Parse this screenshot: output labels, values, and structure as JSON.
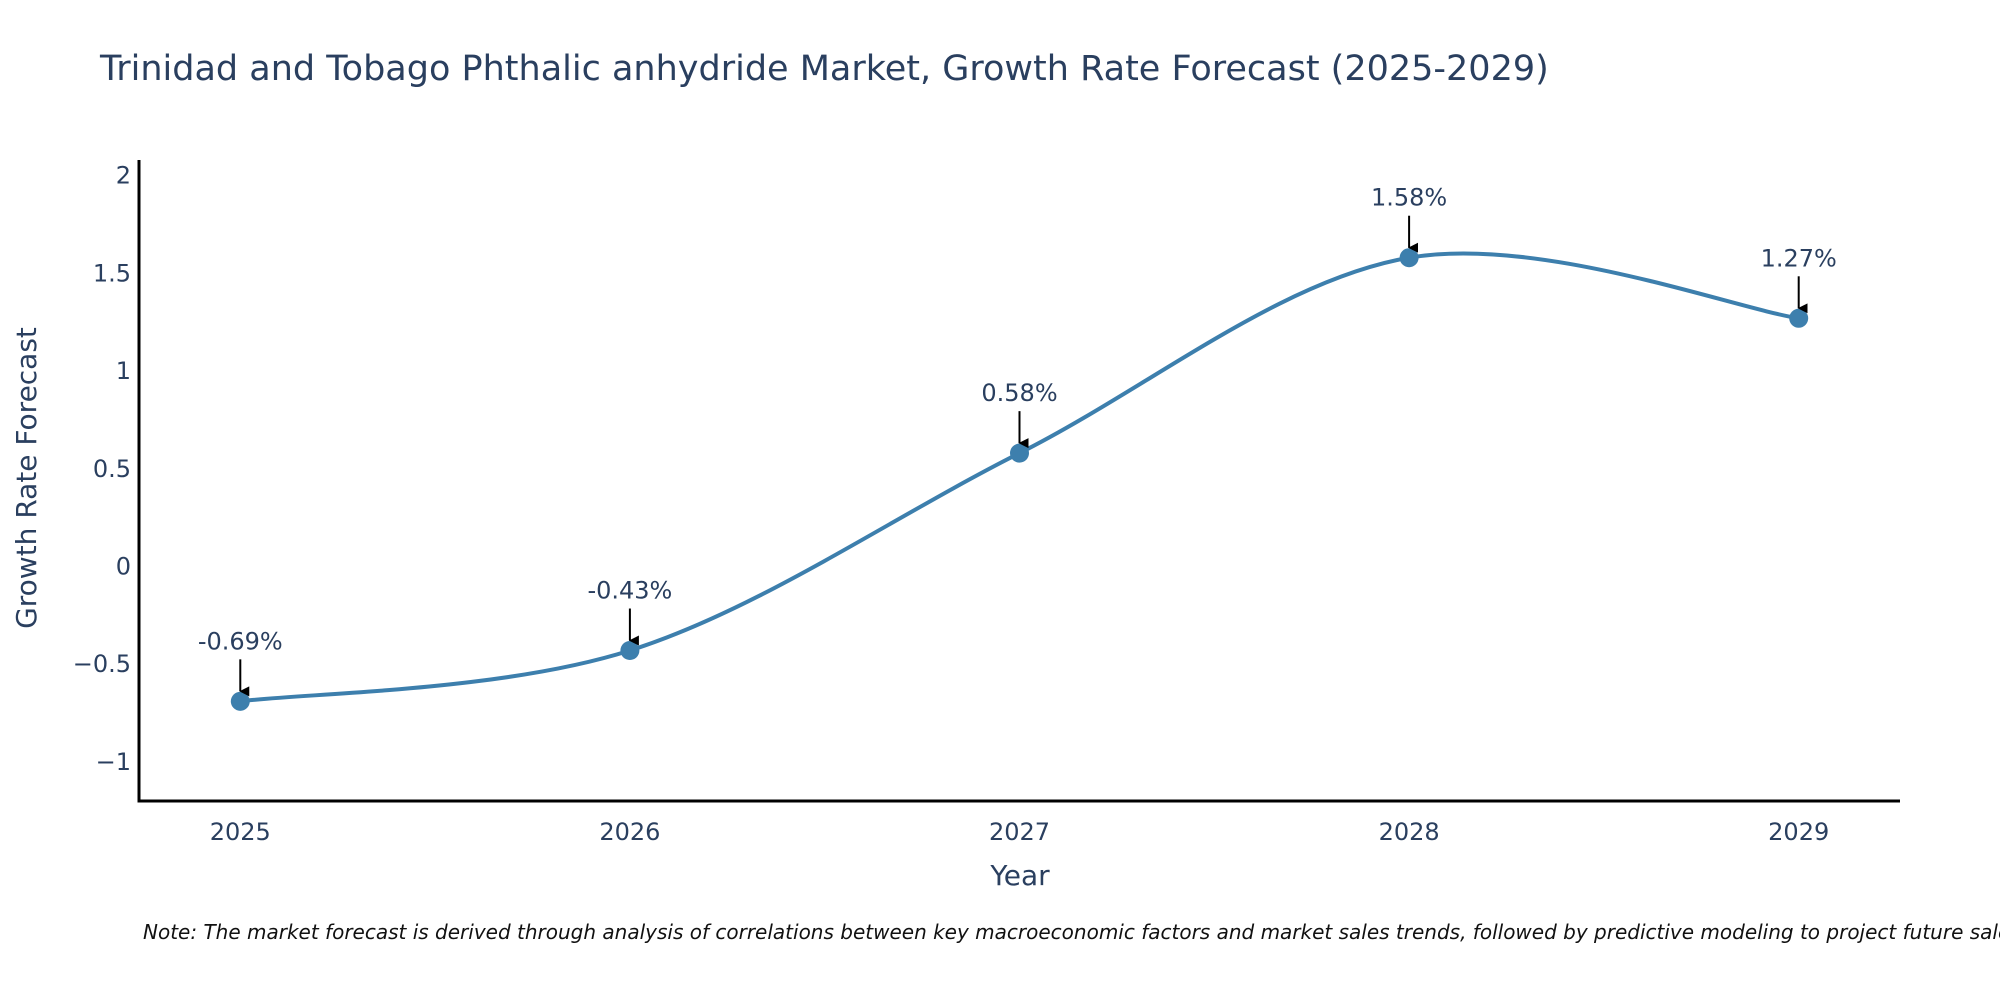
{
  "chart_data": {
    "type": "line",
    "title": "Trinidad and Tobago Phthalic anhydride Market, Growth Rate Forecast (2025-2029)",
    "xlabel": "Year",
    "ylabel": "Growth Rate Forecast",
    "x": [
      2025,
      2026,
      2027,
      2028,
      2029
    ],
    "values": [
      -0.69,
      -0.43,
      0.58,
      1.58,
      1.27
    ],
    "labels": [
      "-0.69%",
      "-0.43%",
      "0.58%",
      "1.58%",
      "1.27%"
    ],
    "x_ticks": [
      "2025",
      "2026",
      "2027",
      "2028",
      "2029"
    ],
    "y_tick_values": [
      -1,
      -0.5,
      0,
      0.5,
      1,
      1.5,
      2
    ],
    "y_tick_labels": [
      "−1",
      "−0.5",
      "0",
      "0.5",
      "1",
      "1.5",
      "2"
    ],
    "xlim": [
      2024.74,
      2029.26
    ],
    "ylim": [
      -1.2,
      2.08
    ],
    "line_color": "#3d7fad",
    "grid": false,
    "legend": false
  },
  "note": "Note: The market forecast is derived through analysis of correlations between key macroeconomic factors and market sales trends, followed by predictive modeling to project future sales."
}
